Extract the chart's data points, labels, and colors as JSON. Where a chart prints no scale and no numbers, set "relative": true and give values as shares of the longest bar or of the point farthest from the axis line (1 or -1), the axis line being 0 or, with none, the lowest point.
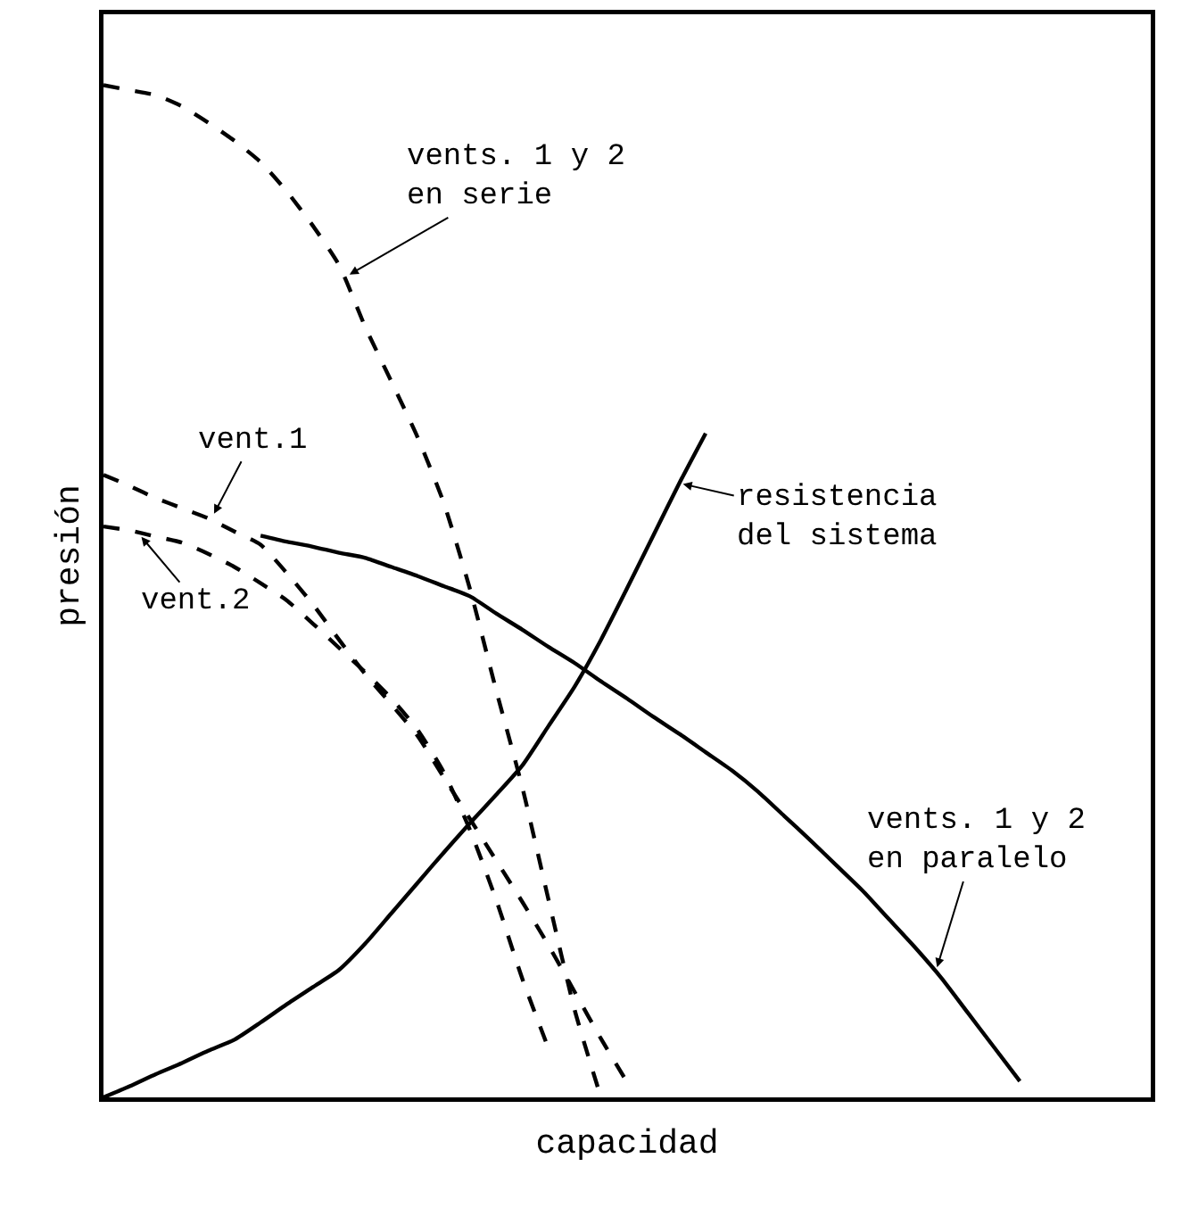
{
  "chart_data": {
    "type": "line",
    "relative": true,
    "xlabel": "capacidad",
    "ylabel": "presión",
    "grid": false,
    "marker": "none",
    "categories": [
      null,
      null,
      null,
      null,
      null,
      null,
      null,
      null,
      null,
      null,
      null,
      null,
      null,
      null,
      null,
      null,
      null,
      null,
      null,
      null,
      null,
      null,
      null,
      null,
      null,
      null,
      null,
      null,
      null,
      null,
      null,
      null,
      null,
      null,
      null,
      null,
      null,
      null,
      null,
      null,
      null
    ],
    "series": [
      {
        "color": "#000000",
        "line_style": "dashed",
        "values": [
          1,
          0.995,
          0.99,
          0.979,
          0.963,
          0.945,
          0.924,
          0.895,
          0.861,
          0.822,
          0.761,
          0.707,
          0.652,
          0.587,
          0.502,
          0.402,
          0.306,
          0.195,
          0.086,
          0,
          null,
          null,
          null,
          null,
          null,
          null,
          null,
          null,
          null,
          null,
          null,
          null,
          null,
          null,
          null,
          null,
          null,
          null,
          null,
          null,
          null
        ]
      },
      {
        "color": "#000000",
        "line_style": "dashed",
        "values": [
          0.615,
          0.604,
          0.592,
          0.582,
          0.572,
          0.559,
          0.546,
          0.518,
          0.487,
          0.452,
          0.418,
          0.388,
          0.357,
          0.316,
          0.275,
          0.234,
          0.193,
          0.15,
          0.104,
          0.058,
          0.015,
          null,
          null,
          null,
          null,
          null,
          null,
          null,
          null,
          null,
          null,
          null,
          null,
          null,
          null,
          null,
          null,
          null,
          null,
          null,
          null
        ]
      },
      {
        "color": "#000000",
        "line_style": "dashed",
        "values": [
          0.564,
          0.56,
          0.554,
          0.548,
          0.537,
          0.524,
          0.508,
          0.491,
          0.468,
          0.444,
          0.42,
          0.394,
          0.363,
          0.321,
          0.264,
          0.195,
          0.117,
          0.048,
          null,
          null,
          null,
          null,
          null,
          null,
          null,
          null,
          null,
          null,
          null,
          null,
          null,
          null,
          null,
          null,
          null,
          null,
          null,
          null,
          null,
          null,
          null
        ]
      },
      {
        "color": "#000000",
        "line_style": "solid",
        "values": [
          null,
          null,
          null,
          null,
          null,
          null,
          0.555,
          0.549,
          0.544,
          0.538,
          0.533,
          0.524,
          0.515,
          0.505,
          0.495,
          0.478,
          0.462,
          0.445,
          0.429,
          0.411,
          0.394,
          0.376,
          0.359,
          0.341,
          0.323,
          0.302,
          0.278,
          0.254,
          0.229,
          0.204,
          0.176,
          0.148,
          0.118,
          0.084,
          0.05,
          0.016,
          null,
          null,
          null,
          null,
          null
        ]
      },
      {
        "color": "#000000",
        "line_style": "solid",
        "values": [
          0,
          0.011,
          0.023,
          0.034,
          0.046,
          0.057,
          0.074,
          0.092,
          0.109,
          0.126,
          0.152,
          0.182,
          0.212,
          0.242,
          0.271,
          0.299,
          0.328,
          0.367,
          0.406,
          0.452,
          0.503,
          0.555,
          0.607,
          0.656,
          null,
          null,
          null,
          null,
          null,
          null,
          null,
          null,
          null,
          null,
          null,
          null,
          null,
          null,
          null,
          null,
          null
        ]
      }
    ],
    "annotations": [
      "vents. 1 y 2\nen serie",
      "vent.1",
      "vent.2",
      "resistencia\ndel sistema",
      "vents. 1 y 2\nen paralelo"
    ]
  }
}
